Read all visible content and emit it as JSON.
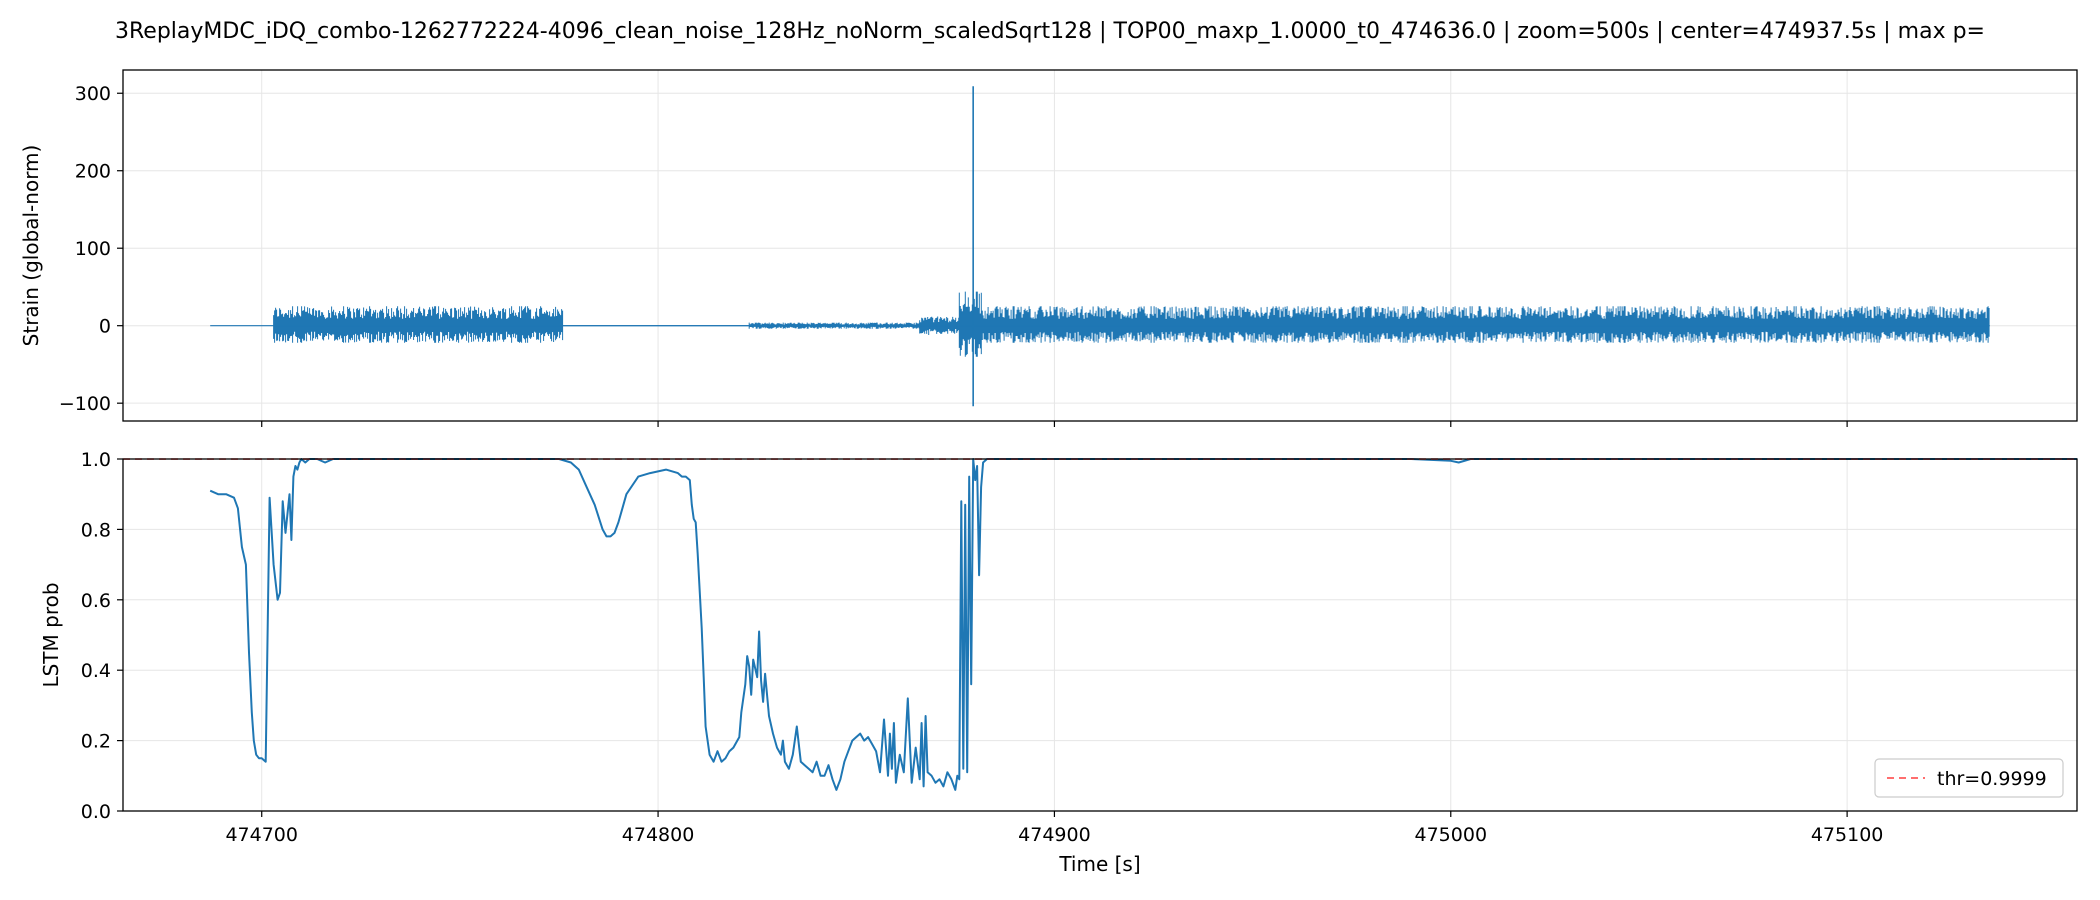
{
  "figure": {
    "title": "3ReplayMDC_iDQ_combo-1262772224-4096_clean_noise_128Hz_noNorm_scaledSqrt128 | TOP00_maxp_1.0000_t0_474636.0 | zoom=500s | center=474937.5s | max p="
  },
  "chart_data": [
    {
      "type": "line",
      "panel": "strain",
      "ylabel": "Strain (global-norm)",
      "xlabel": "",
      "xlim": [
        474665,
        475158
      ],
      "ylim": [
        -123,
        330
      ],
      "yticks": [
        -100,
        0,
        100,
        200,
        300
      ],
      "yticklabels": [
        "−100",
        "0",
        "100",
        "200",
        "300"
      ],
      "xticks": [
        474700,
        474800,
        474900,
        475000,
        475100
      ],
      "grid": true,
      "color": "#1f77b4",
      "segments": [
        {
          "x": [
            474687,
            474703
          ],
          "envelope": [
            0,
            0
          ]
        },
        {
          "x": [
            474703,
            474776
          ],
          "envelope": [
            -22,
            25
          ]
        },
        {
          "x": [
            474776,
            474823
          ],
          "envelope": [
            -0.8,
            0.8
          ]
        },
        {
          "x": [
            474823,
            474866
          ],
          "envelope": [
            -4,
            4
          ]
        },
        {
          "x": [
            474866,
            474876
          ],
          "envelope": [
            -12,
            12
          ]
        },
        {
          "x": [
            474876,
            474882
          ],
          "envelope": [
            -40,
            44
          ]
        },
        {
          "x": [
            474882,
            475136
          ],
          "envelope": [
            -22,
            25
          ]
        }
      ],
      "spike": {
        "x": 474879.5,
        "max": 309,
        "min": -104
      }
    },
    {
      "type": "line",
      "panel": "lstm",
      "ylabel": "LSTM prob",
      "xlabel": "Time [s]",
      "xlim": [
        474665,
        475158
      ],
      "ylim": [
        0.0,
        1.0
      ],
      "yticks": [
        0.0,
        0.2,
        0.4,
        0.6,
        0.8,
        1.0
      ],
      "yticklabels": [
        "0.0",
        "0.2",
        "0.4",
        "0.6",
        "0.8",
        "1.0"
      ],
      "xticks": [
        474700,
        474800,
        474900,
        475000,
        475100
      ],
      "xticklabels": [
        "474700",
        "474800",
        "474900",
        "475000",
        "475100"
      ],
      "grid": true,
      "legend": {
        "position": "lower-right",
        "entries": [
          {
            "label": "thr=0.9999",
            "color": "#ff5a5a",
            "style": "dashed"
          }
        ]
      },
      "threshold": 0.9999,
      "series": [
        {
          "color": "#1f77b4",
          "x": [
            474687,
            474689,
            474691,
            474693,
            474694,
            474695,
            474696,
            474696.8,
            474697.5,
            474698,
            474698.6,
            474699.3,
            474700,
            474701,
            474702,
            474703,
            474704,
            474704.6,
            474705.3,
            474706,
            474707,
            474707.5,
            474708,
            474708.5,
            474709,
            474709.5,
            474710,
            474711,
            474712,
            474714,
            474716,
            474718,
            474720,
            474730,
            474760,
            474775,
            474778,
            474780,
            474782,
            474784,
            474786,
            474787,
            474788,
            474789,
            474790,
            474791,
            474792,
            474795,
            474798,
            474802,
            474805,
            474806,
            474807,
            474808,
            474808.5,
            474809,
            474809.5,
            474810,
            474811,
            474811.5,
            474812,
            474813,
            474814,
            474815,
            474816,
            474817,
            474818,
            474819,
            474820,
            474820.5,
            474821,
            474822,
            474822.5,
            474823,
            474823.5,
            474824,
            474825,
            474825.5,
            474826,
            474826.5,
            474827,
            474828,
            474829,
            474830,
            474831,
            474831.5,
            474832,
            474833,
            474834,
            474835,
            474836,
            474837,
            474838,
            474839,
            474840,
            474841,
            474842,
            474843,
            474844,
            474845,
            474846,
            474847,
            474848,
            474849,
            474850,
            474851,
            474852,
            474853,
            474854,
            474855,
            474856,
            474857,
            474858,
            474858.5,
            474859,
            474859.5,
            474860,
            474861,
            474862,
            474863,
            474864,
            474865,
            474866,
            474866.5,
            474867,
            474867.5,
            474868,
            474869,
            474870,
            474871,
            474872,
            474873,
            474874,
            474875,
            474875.5,
            474876,
            474876.5,
            474877,
            474877.5,
            474878,
            474878.5,
            474879,
            474879.5,
            474880,
            474880.5,
            474881,
            474881.5,
            474882,
            474883,
            474884,
            474885,
            474900,
            474990,
            475000,
            475002,
            475005,
            475050,
            475100,
            475158
          ],
          "y": [
            0.91,
            0.9,
            0.9,
            0.89,
            0.86,
            0.75,
            0.7,
            0.45,
            0.28,
            0.2,
            0.16,
            0.15,
            0.15,
            0.14,
            0.89,
            0.7,
            0.6,
            0.62,
            0.88,
            0.79,
            0.9,
            0.77,
            0.95,
            0.98,
            0.97,
            0.99,
            1.0,
            0.99,
            1.0,
            1.0,
            0.99,
            1.0,
            1.0,
            1.0,
            1.0,
            1.0,
            0.99,
            0.97,
            0.92,
            0.87,
            0.8,
            0.78,
            0.78,
            0.79,
            0.82,
            0.86,
            0.9,
            0.95,
            0.96,
            0.97,
            0.96,
            0.95,
            0.95,
            0.94,
            0.87,
            0.83,
            0.82,
            0.73,
            0.52,
            0.38,
            0.24,
            0.16,
            0.14,
            0.17,
            0.14,
            0.15,
            0.17,
            0.18,
            0.2,
            0.21,
            0.28,
            0.36,
            0.44,
            0.41,
            0.33,
            0.43,
            0.38,
            0.51,
            0.37,
            0.31,
            0.39,
            0.27,
            0.22,
            0.18,
            0.16,
            0.2,
            0.14,
            0.12,
            0.16,
            0.24,
            0.14,
            0.13,
            0.12,
            0.11,
            0.14,
            0.1,
            0.1,
            0.13,
            0.09,
            0.06,
            0.09,
            0.14,
            0.17,
            0.2,
            0.21,
            0.22,
            0.2,
            0.21,
            0.19,
            0.17,
            0.11,
            0.26,
            0.1,
            0.22,
            0.12,
            0.25,
            0.08,
            0.16,
            0.11,
            0.32,
            0.08,
            0.18,
            0.09,
            0.25,
            0.07,
            0.27,
            0.11,
            0.1,
            0.08,
            0.09,
            0.07,
            0.11,
            0.09,
            0.06,
            0.1,
            0.09,
            0.88,
            0.12,
            0.87,
            0.11,
            0.95,
            0.36,
            1.0,
            0.94,
            0.98,
            0.67,
            0.92,
            0.99,
            1.0,
            1.0,
            1.0,
            1.0,
            1.0,
            0.995,
            0.99,
            1.0,
            1.0,
            1.0,
            1.0
          ]
        }
      ]
    }
  ]
}
